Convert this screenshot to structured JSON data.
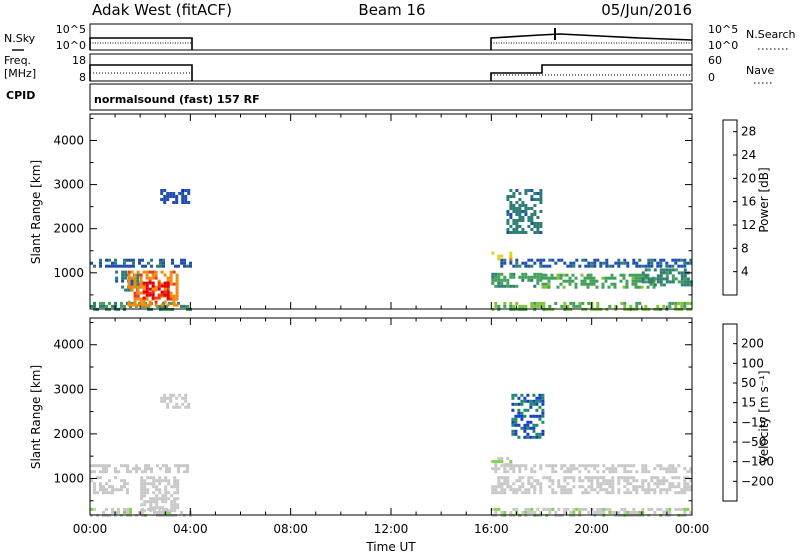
{
  "header": {
    "radar": "Adak West (fitACF)",
    "beam": "Beam 16",
    "date": "05/Jun/2016"
  },
  "noise_panel": {
    "left_label": "N.Sky",
    "right_label": "N.Search",
    "left_ticks": [
      "10^5",
      "10^0"
    ],
    "right_ticks": [
      "10^5",
      "10^0"
    ]
  },
  "freq_panel": {
    "left_label_1": "Freq.",
    "left_label_2": "[MHz]",
    "right_label": "Nave",
    "left_ticks": [
      "18",
      "8"
    ],
    "right_ticks": [
      "60",
      "0"
    ]
  },
  "cpid_panel": {
    "label": "CPID",
    "program": "normalsound (fast) 157 RF"
  },
  "colors": {
    "power": [
      "#0a22ee",
      "#1f4fb0",
      "#2f7e73",
      "#43a05a",
      "#7dc43a",
      "#e0d21e",
      "#f08a10",
      "#ea3a12",
      "#e3000b"
    ],
    "velocity": [
      "#e60000",
      "#f25c00",
      "#f5a000",
      "#f5d080",
      "#c8c8c8",
      "#c8c8c8",
      "#7fd24a",
      "#1a8a3a",
      "#1d8a6a",
      "#1a3cc8"
    ]
  },
  "chart_data": [
    {
      "type": "heatmap",
      "title": "",
      "xlabel": "Time UT",
      "ylabel": "Slant Range [km]",
      "x_ticks": [
        "00:00",
        "04:00",
        "08:00",
        "12:00",
        "16:00",
        "20:00",
        "00:00"
      ],
      "y_ticks": [
        "1000",
        "2000",
        "3000",
        "4000"
      ],
      "colorbar": {
        "label": "Power [dB]",
        "ticks": [
          "4",
          "8",
          "12",
          "16",
          "20",
          "24",
          "28"
        ],
        "range": [
          0,
          30
        ]
      },
      "xlim": [
        0,
        24
      ],
      "ylim": [
        180,
        4600
      ],
      "data_blocks": [
        {
          "t": [
            0.0,
            4.0
          ],
          "r": [
            1150,
            1320
          ],
          "value": 6
        },
        {
          "t": [
            0.0,
            4.0
          ],
          "r": [
            200,
            340
          ],
          "value": 10
        },
        {
          "t": [
            1.0,
            2.0
          ],
          "r": [
            600,
            1050
          ],
          "value": 8
        },
        {
          "t": [
            1.5,
            3.5
          ],
          "r": [
            300,
            1050
          ],
          "value": 22
        },
        {
          "t": [
            2.1,
            3.1
          ],
          "r": [
            400,
            800
          ],
          "value": 28
        },
        {
          "t": [
            2.8,
            3.9
          ],
          "r": [
            2580,
            2900
          ],
          "value": 5
        },
        {
          "t": [
            16.0,
            24.0
          ],
          "r": [
            1150,
            1320
          ],
          "value": 6
        },
        {
          "t": [
            16.0,
            24.0
          ],
          "r": [
            180,
            340
          ],
          "value": 14
        },
        {
          "t": [
            16.0,
            18.0
          ],
          "r": [
            700,
            1000
          ],
          "value": 11
        },
        {
          "t": [
            18.0,
            22.5
          ],
          "r": [
            680,
            980
          ],
          "value": 12
        },
        {
          "t": [
            22.0,
            24.0
          ],
          "r": [
            750,
            1100
          ],
          "value": 9
        },
        {
          "t": [
            16.0,
            16.8
          ],
          "r": [
            1300,
            1480
          ],
          "value": 19
        },
        {
          "t": [
            16.6,
            18.0
          ],
          "r": [
            1900,
            2900
          ],
          "value": 8
        }
      ]
    },
    {
      "type": "heatmap",
      "title": "",
      "xlabel": "Time UT",
      "ylabel": "Slant Range [km]",
      "x_ticks": [
        "00:00",
        "04:00",
        "08:00",
        "12:00",
        "16:00",
        "20:00",
        "00:00"
      ],
      "y_ticks": [
        "1000",
        "2000",
        "3000",
        "4000"
      ],
      "colorbar": {
        "label": "Velocity [m s⁻¹]",
        "ticks": [
          "200",
          "100",
          "50",
          "15",
          "−15",
          "−50",
          "−100",
          "−200"
        ],
        "range": [
          -250,
          250
        ]
      },
      "xlim": [
        0,
        24
      ],
      "ylim": [
        180,
        4600
      ],
      "data_blocks": [
        {
          "t": [
            0.0,
            4.0
          ],
          "r": [
            1150,
            1320
          ],
          "value": 0
        },
        {
          "t": [
            0.0,
            4.0
          ],
          "r": [
            200,
            340
          ],
          "value": 30
        },
        {
          "t": [
            0.0,
            1.5
          ],
          "r": [
            680,
            1050
          ],
          "value": 0
        },
        {
          "t": [
            2.0,
            3.5
          ],
          "r": [
            300,
            1050
          ],
          "value": 0
        },
        {
          "t": [
            2.8,
            3.9
          ],
          "r": [
            2580,
            2900
          ],
          "value": 0
        },
        {
          "t": [
            16.0,
            24.0
          ],
          "r": [
            1150,
            1320
          ],
          "value": 0
        },
        {
          "t": [
            16.0,
            24.0
          ],
          "r": [
            180,
            340
          ],
          "value": 30
        },
        {
          "t": [
            16.0,
            24.0
          ],
          "r": [
            650,
            1050
          ],
          "value": 0
        },
        {
          "t": [
            16.0,
            16.8
          ],
          "r": [
            1300,
            1480
          ],
          "value": 40
        },
        {
          "t": [
            16.8,
            18.0
          ],
          "r": [
            1900,
            2900
          ],
          "value": 200
        }
      ]
    }
  ]
}
